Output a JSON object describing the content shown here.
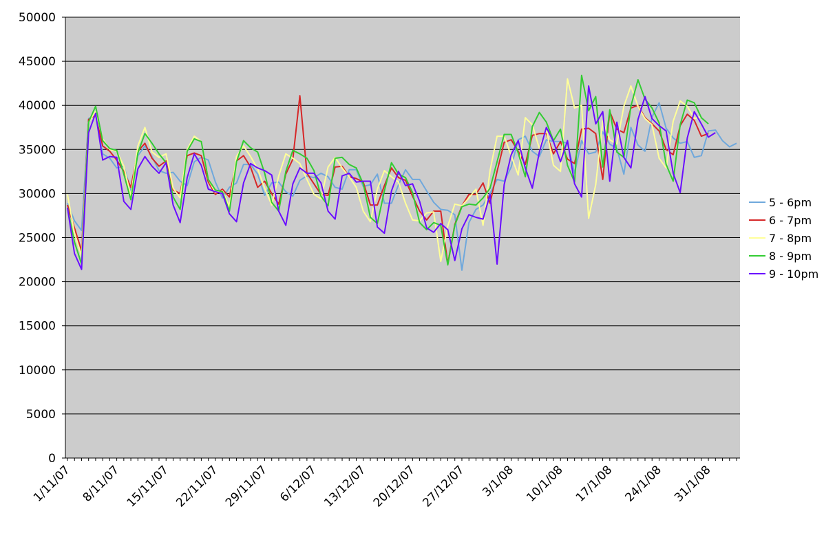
{
  "chart_data": {
    "type": "line",
    "title": "",
    "xlabel": "",
    "ylabel": "",
    "ylim": [
      0,
      50000
    ],
    "y_ticks": [
      0,
      5000,
      10000,
      15000,
      20000,
      25000,
      30000,
      35000,
      40000,
      45000,
      50000
    ],
    "y_tick_labels": [
      "0",
      "5000",
      "10000",
      "15000",
      "20000",
      "25000",
      "30000",
      "35000",
      "40000",
      "45000",
      "50000"
    ],
    "x_start": "1/11/07",
    "x_end": "31/1/08",
    "x_tick_labels": [
      {
        "label": "1/11/07",
        "date": "2007-11-01"
      },
      {
        "label": "8/11/07",
        "date": "2007-11-08"
      },
      {
        "label": "15/11/07",
        "date": "2007-11-15"
      },
      {
        "label": "22/11/07",
        "date": "2007-11-22"
      },
      {
        "label": "29/11/07",
        "date": "2007-11-29"
      },
      {
        "label": "6/12/07",
        "date": "2007-12-06"
      },
      {
        "label": "13/12/07",
        "date": "2007-12-13"
      },
      {
        "label": "20/12/07",
        "date": "2007-12-20"
      },
      {
        "label": "27/12/07",
        "date": "2007-12-27"
      },
      {
        "label": "3/1/08",
        "date": "2008-01-03"
      },
      {
        "label": "10/1/08",
        "date": "2008-01-10"
      },
      {
        "label": "17/1/08",
        "date": "2008-01-17"
      },
      {
        "label": "24/1/08",
        "date": "2008-01-24"
      },
      {
        "label": "31/1/08",
        "date": "2008-01-31"
      }
    ],
    "grid": true,
    "plot_background": "#cccccc",
    "gridline_color": "#000000",
    "legend_position": "right",
    "series": [
      {
        "name": "5 - 6pm",
        "color": "#6fa8dc",
        "values": [
          28900,
          26900,
          25800,
          38500,
          38900,
          34500,
          34000,
          32900,
          33100,
          30400,
          34300,
          35400,
          34200,
          32600,
          32300,
          32400,
          31400,
          30900,
          33600,
          34100,
          33800,
          31300,
          29500,
          30700,
          31200,
          33300,
          33300,
          32200,
          29800,
          31200,
          31300,
          30200,
          29700,
          31500,
          32000,
          31800,
          32300,
          31900,
          30700,
          30500,
          32700,
          32700,
          30800,
          31000,
          32200,
          28900,
          28900,
          31000,
          32700,
          31600,
          31600,
          30300,
          29000,
          28200,
          28100,
          27600,
          21300,
          26700,
          28200,
          28700,
          30000,
          31600,
          31400,
          33000,
          36100,
          36500,
          34800,
          34200,
          36100,
          35900,
          35900,
          35700,
          32300,
          36000,
          34500,
          34700,
          37000,
          35600,
          35100,
          32200,
          37500,
          35500,
          34800,
          38700,
          40300,
          37400,
          36300,
          35700,
          35900,
          34100,
          34300,
          37100,
          37200,
          36000,
          35300,
          35700
        ]
      },
      {
        "name": "6 - 7pm",
        "color": "#d62728",
        "values": [
          28700,
          26100,
          23500,
          38400,
          38900,
          35400,
          34800,
          33800,
          32500,
          30700,
          34800,
          35700,
          34000,
          33100,
          33700,
          30400,
          30000,
          34300,
          34600,
          34300,
          31300,
          29900,
          30500,
          29600,
          33700,
          34300,
          33000,
          30700,
          31400,
          30000,
          28800,
          32200,
          33900,
          41100,
          32300,
          31100,
          29900,
          29800,
          33000,
          33100,
          31900,
          31700,
          31300,
          28700,
          28700,
          30900,
          32900,
          31800,
          31500,
          29700,
          28000,
          27000,
          28000,
          28000,
          22000,
          26500,
          28600,
          29900,
          29900,
          31200,
          28900,
          32500,
          35800,
          36100,
          34800,
          33300,
          36600,
          36800,
          36800,
          34500,
          35900,
          33900,
          33400,
          37300,
          37400,
          36800,
          31600,
          39300,
          37300,
          36900,
          39700,
          40000,
          38600,
          37900,
          37100,
          35000,
          34400,
          37700,
          39000,
          38300,
          36500,
          36800
        ]
      },
      {
        "name": "7 - 8pm",
        "color": "#ffff99",
        "values": [
          29900,
          25500,
          22900,
          38100,
          39300,
          36200,
          35000,
          34800,
          33100,
          29700,
          35400,
          37500,
          34700,
          34100,
          34500,
          30600,
          29500,
          35000,
          36500,
          35900,
          31600,
          30100,
          30300,
          28500,
          34200,
          35400,
          34200,
          32800,
          30600,
          28700,
          32000,
          34500,
          34000,
          33400,
          31600,
          29900,
          29400,
          33000,
          34100,
          32900,
          31900,
          30700,
          28000,
          26800,
          30500,
          32600,
          31900,
          31300,
          28900,
          27000,
          26900,
          27800,
          27900,
          22300,
          26300,
          28800,
          28600,
          29500,
          30500,
          26400,
          32600,
          36500,
          36500,
          34300,
          32100,
          38600,
          37800,
          35100,
          37300,
          33200,
          32500,
          43000,
          39700,
          40000,
          27200,
          31000,
          38200,
          36100,
          35600,
          39900,
          42200,
          39900,
          38500,
          37800,
          34000,
          32900,
          38200,
          40500,
          39900,
          38500,
          38700
        ]
      },
      {
        "name": "8 - 9pm",
        "color": "#33cc33",
        "values": [
          28400,
          24500,
          22000,
          38100,
          39900,
          36000,
          35100,
          34900,
          32200,
          29300,
          34600,
          36800,
          35700,
          34500,
          33500,
          29600,
          28200,
          34800,
          36200,
          35900,
          31600,
          30400,
          30200,
          28000,
          33600,
          36000,
          35200,
          34700,
          32300,
          29000,
          28000,
          32500,
          34900,
          34500,
          34000,
          32600,
          29700,
          28600,
          34000,
          34100,
          33300,
          32900,
          31100,
          27300,
          26600,
          30300,
          33500,
          32200,
          31800,
          30100,
          26700,
          25900,
          26700,
          26400,
          21900,
          26400,
          28500,
          28800,
          28700,
          29500,
          30600,
          33600,
          36700,
          36700,
          34600,
          31900,
          37600,
          39200,
          38100,
          36000,
          37300,
          33200,
          31300,
          43400,
          39400,
          41000,
          33000,
          39500,
          34700,
          34100,
          39900,
          42900,
          40700,
          39700,
          38000,
          33300,
          31400,
          37800,
          40600,
          40300,
          38600,
          37900
        ]
      },
      {
        "name": "9 - 10pm",
        "color": "#6a0dff",
        "values": [
          28400,
          23200,
          21400,
          36900,
          39100,
          33800,
          34200,
          34100,
          29100,
          28200,
          32800,
          34200,
          33100,
          32300,
          33500,
          28700,
          26700,
          31800,
          34500,
          33200,
          30500,
          30200,
          30000,
          27700,
          26800,
          31200,
          33400,
          32900,
          32600,
          32100,
          28000,
          26400,
          31100,
          32900,
          32300,
          32300,
          31200,
          28000,
          27100,
          32000,
          32300,
          31300,
          31400,
          31400,
          26200,
          25500,
          30300,
          32500,
          30900,
          31100,
          29100,
          26100,
          25600,
          26600,
          25900,
          22400,
          26000,
          27600,
          27300,
          27100,
          29900,
          22000,
          31000,
          34400,
          36000,
          32900,
          30600,
          34700,
          37500,
          35900,
          33600,
          36000,
          31100,
          29600,
          42200,
          37900,
          39300,
          31400,
          38100,
          34100,
          32900,
          38400,
          41000,
          38500,
          37700,
          37100,
          32300,
          30100,
          36300,
          39300,
          37900,
          36400,
          36900
        ]
      }
    ]
  }
}
